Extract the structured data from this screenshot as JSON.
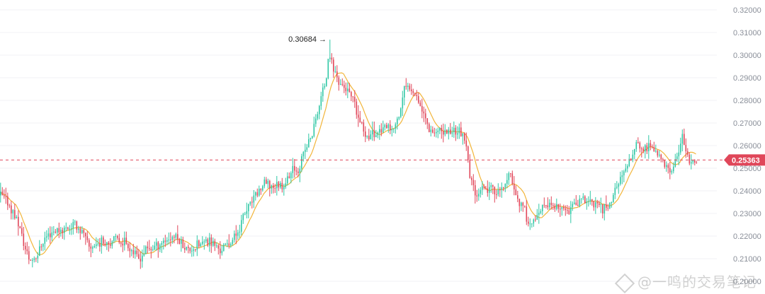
{
  "chart_data": {
    "type": "candlestick",
    "title": "",
    "xlabel": "",
    "ylabel": "",
    "y_axis_position": "right",
    "ylim": [
      0.2,
      0.32
    ],
    "yticks": [
      "0.32000",
      "0.31000",
      "0.30000",
      "0.29000",
      "0.28000",
      "0.27000",
      "0.26000",
      "0.25000",
      "0.24000",
      "0.23000",
      "0.22000",
      "0.21000",
      "0.20000"
    ],
    "grid": true,
    "price_trend": [
      [
        0,
        0.238
      ],
      [
        12,
        0.234
      ],
      [
        25,
        0.226
      ],
      [
        35,
        0.214
      ],
      [
        42,
        0.209
      ],
      [
        52,
        0.212
      ],
      [
        62,
        0.219
      ],
      [
        72,
        0.222
      ],
      [
        88,
        0.223
      ],
      [
        105,
        0.225
      ],
      [
        115,
        0.222
      ],
      [
        125,
        0.215
      ],
      [
        140,
        0.217
      ],
      [
        160,
        0.218
      ],
      [
        175,
        0.218
      ],
      [
        185,
        0.214
      ],
      [
        195,
        0.21
      ],
      [
        205,
        0.214
      ],
      [
        215,
        0.215
      ],
      [
        230,
        0.218
      ],
      [
        245,
        0.22
      ],
      [
        255,
        0.217
      ],
      [
        265,
        0.214
      ],
      [
        280,
        0.216
      ],
      [
        295,
        0.218
      ],
      [
        310,
        0.214
      ],
      [
        320,
        0.216
      ],
      [
        332,
        0.22
      ],
      [
        345,
        0.23
      ],
      [
        360,
        0.238
      ],
      [
        372,
        0.243
      ],
      [
        385,
        0.242
      ],
      [
        400,
        0.243
      ],
      [
        410,
        0.248
      ],
      [
        420,
        0.25
      ],
      [
        430,
        0.258
      ],
      [
        440,
        0.265
      ],
      [
        450,
        0.278
      ],
      [
        458,
        0.288
      ],
      [
        465,
        0.3
      ],
      [
        470,
        0.294
      ],
      [
        478,
        0.288
      ],
      [
        488,
        0.285
      ],
      [
        497,
        0.28
      ],
      [
        505,
        0.272
      ],
      [
        515,
        0.265
      ],
      [
        528,
        0.265
      ],
      [
        540,
        0.268
      ],
      [
        552,
        0.266
      ],
      [
        562,
        0.272
      ],
      [
        570,
        0.285
      ],
      [
        578,
        0.286
      ],
      [
        585,
        0.284
      ],
      [
        595,
        0.276
      ],
      [
        605,
        0.268
      ],
      [
        615,
        0.266
      ],
      [
        628,
        0.266
      ],
      [
        640,
        0.267
      ],
      [
        650,
        0.266
      ],
      [
        658,
        0.258
      ],
      [
        663,
        0.245
      ],
      [
        670,
        0.24
      ],
      [
        682,
        0.24
      ],
      [
        695,
        0.241
      ],
      [
        705,
        0.239
      ],
      [
        712,
        0.243
      ],
      [
        720,
        0.247
      ],
      [
        728,
        0.238
      ],
      [
        738,
        0.232
      ],
      [
        748,
        0.225
      ],
      [
        758,
        0.228
      ],
      [
        768,
        0.234
      ],
      [
        780,
        0.233
      ],
      [
        792,
        0.231
      ],
      [
        802,
        0.232
      ],
      [
        812,
        0.234
      ],
      [
        822,
        0.236
      ],
      [
        832,
        0.235
      ],
      [
        842,
        0.233
      ],
      [
        852,
        0.232
      ],
      [
        862,
        0.235
      ],
      [
        870,
        0.243
      ],
      [
        880,
        0.247
      ],
      [
        890,
        0.255
      ],
      [
        898,
        0.262
      ],
      [
        905,
        0.258
      ],
      [
        915,
        0.259
      ],
      [
        925,
        0.258
      ],
      [
        935,
        0.252
      ],
      [
        945,
        0.248
      ],
      [
        955,
        0.254
      ],
      [
        962,
        0.264
      ],
      [
        968,
        0.257
      ],
      [
        975,
        0.251
      ],
      [
        983,
        0.2536
      ]
    ],
    "moving_average_color": "#f2b53a",
    "up_color": "#2fc7a5",
    "down_color": "#e0475a",
    "peak": {
      "value": 0.30684,
      "label": "0.30684",
      "arrow": "→"
    },
    "current_price": {
      "value": 0.25363,
      "label": "0.25363",
      "color": "#e0475a"
    }
  },
  "watermark": {
    "text": "@一鸣的交易笔记",
    "icon_name": "diamond-logo-icon"
  }
}
